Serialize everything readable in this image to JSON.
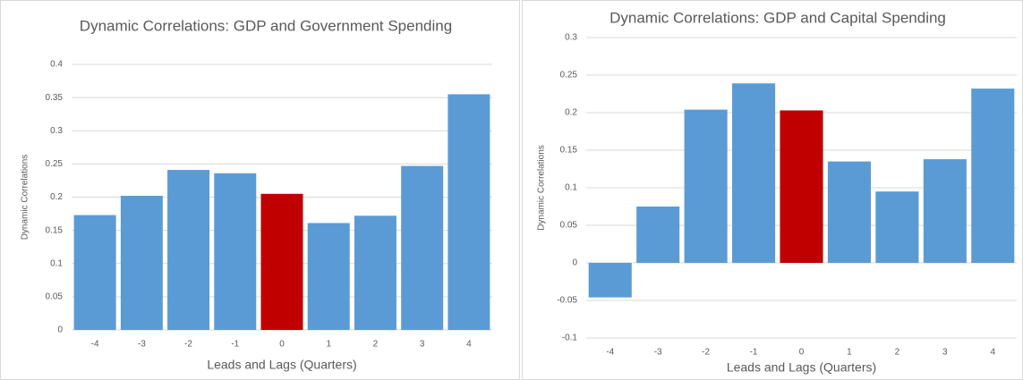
{
  "chart_data": [
    {
      "type": "bar",
      "title": "Dynamic Correlations: GDP and Government Spending",
      "x_label": "Leads and Lags (Quarters)",
      "y_label": "Dynamic Correlations",
      "categories": [
        "-4",
        "-3",
        "-2",
        "-1",
        "0",
        "1",
        "2",
        "3",
        "4"
      ],
      "values": [
        0.173,
        0.202,
        0.241,
        0.236,
        0.205,
        0.161,
        0.172,
        0.247,
        0.355
      ],
      "colors": [
        "#5b9bd5",
        "#5b9bd5",
        "#5b9bd5",
        "#5b9bd5",
        "#c00000",
        "#5b9bd5",
        "#5b9bd5",
        "#5b9bd5",
        "#5b9bd5"
      ],
      "ylim": [
        0,
        0.4
      ],
      "yticks": [
        0,
        0.05,
        0.1,
        0.15,
        0.2,
        0.25,
        0.3,
        0.35,
        0.4
      ],
      "grid": true
    },
    {
      "type": "bar",
      "title": "Dynamic Correlations: GDP and Capital Spending",
      "x_label": "Leads and Lags (Quarters)",
      "y_label": "Dynamic Correlations",
      "categories": [
        "-4",
        "-3",
        "-2",
        "-1",
        "0",
        "1",
        "2",
        "3",
        "4"
      ],
      "values": [
        -0.046,
        0.075,
        0.204,
        0.239,
        0.203,
        0.135,
        0.095,
        0.138,
        0.232
      ],
      "colors": [
        "#5b9bd5",
        "#5b9bd5",
        "#5b9bd5",
        "#5b9bd5",
        "#c00000",
        "#5b9bd5",
        "#5b9bd5",
        "#5b9bd5",
        "#5b9bd5"
      ],
      "ylim": [
        -0.1,
        0.3
      ],
      "yticks": [
        -0.1,
        -0.05,
        0,
        0.05,
        0.1,
        0.15,
        0.2,
        0.25,
        0.3
      ],
      "grid": true
    }
  ]
}
